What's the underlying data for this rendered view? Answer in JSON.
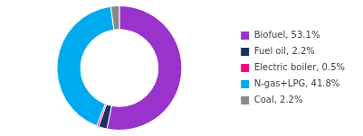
{
  "chart_data": {
    "type": "doughnut",
    "categories": [
      "Biofuel, 53.1%",
      "Fuel oil, 2.2%",
      "Electric boiler, 0.5%",
      "N-gas+LPG, 41.8%",
      "Coal, 2.2%"
    ],
    "values": [
      53.1,
      2.2,
      0.5,
      41.8,
      2.2
    ],
    "colors": [
      "#9933CC",
      "#1A3060",
      "#FF007F",
      "#00AAEE",
      "#888888"
    ],
    "legend": "right"
  }
}
